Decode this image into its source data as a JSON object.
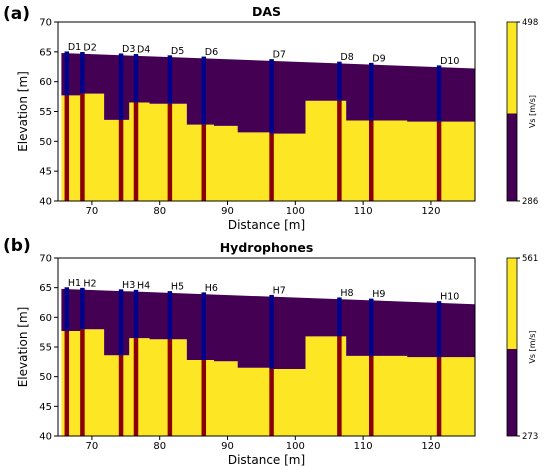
{
  "colors": {
    "high": "#fde725",
    "low": "#440154",
    "casing": "#8b0000",
    "sensor": "#00008b"
  },
  "chart_data": [
    {
      "type": "heatmap",
      "panel_label": "(a)",
      "title": "DAS",
      "xlabel": "Distance [m]",
      "ylabel": "Elevation [m]",
      "xlim": [
        65,
        126.5
      ],
      "ylim": [
        40,
        70
      ],
      "xticks": [
        "70",
        "80",
        "90",
        "100",
        "110",
        "120"
      ],
      "yticks": [
        "40",
        "45",
        "50",
        "55",
        "60",
        "65",
        "70"
      ],
      "colorbar": {
        "label": "Vs [m/s]",
        "max": "498",
        "min": "286"
      },
      "surface": [
        [
          65.5,
          64.8
        ],
        [
          126.5,
          62.2
        ]
      ],
      "interface": [
        [
          65.5,
          57.7
        ],
        [
          68.3,
          57.7
        ],
        [
          68.3,
          58.0
        ],
        [
          71.8,
          58.0
        ],
        [
          71.8,
          53.6
        ],
        [
          75.5,
          53.6
        ],
        [
          75.5,
          56.5
        ],
        [
          78.5,
          56.5
        ],
        [
          78.5,
          56.3
        ],
        [
          84.0,
          56.3
        ],
        [
          84.0,
          52.8
        ],
        [
          88.0,
          52.8
        ],
        [
          88.0,
          52.6
        ],
        [
          91.5,
          52.6
        ],
        [
          91.5,
          51.5
        ],
        [
          96.5,
          51.5
        ],
        [
          96.5,
          51.3
        ],
        [
          101.5,
          51.3
        ],
        [
          101.5,
          56.8
        ],
        [
          107.5,
          56.8
        ],
        [
          107.5,
          53.5
        ],
        [
          116.5,
          53.5
        ],
        [
          116.5,
          53.3
        ],
        [
          126.5,
          53.3
        ]
      ],
      "boreholes": [
        {
          "name": "D1",
          "x": 66.3
        },
        {
          "name": "D2",
          "x": 68.6
        },
        {
          "name": "D3",
          "x": 74.3
        },
        {
          "name": "D4",
          "x": 76.5
        },
        {
          "name": "D5",
          "x": 81.5
        },
        {
          "name": "D6",
          "x": 86.5
        },
        {
          "name": "D7",
          "x": 96.5
        },
        {
          "name": "D8",
          "x": 106.5
        },
        {
          "name": "D9",
          "x": 111.2
        },
        {
          "name": "D10",
          "x": 121.2
        }
      ]
    },
    {
      "type": "heatmap",
      "panel_label": "(b)",
      "title": "Hydrophones",
      "xlabel": "Distance [m]",
      "ylabel": "Elevation [m]",
      "xlim": [
        65,
        126.5
      ],
      "ylim": [
        40,
        70
      ],
      "xticks": [
        "70",
        "80",
        "90",
        "100",
        "110",
        "120"
      ],
      "yticks": [
        "40",
        "45",
        "50",
        "55",
        "60",
        "65",
        "70"
      ],
      "colorbar": {
        "label": "Vs [m/s]",
        "max": "561",
        "min": "273"
      },
      "surface": [
        [
          65.5,
          64.8
        ],
        [
          126.5,
          62.2
        ]
      ],
      "interface": [
        [
          65.5,
          57.7
        ],
        [
          68.3,
          57.7
        ],
        [
          68.3,
          58.0
        ],
        [
          71.8,
          58.0
        ],
        [
          71.8,
          53.6
        ],
        [
          75.5,
          53.6
        ],
        [
          75.5,
          56.5
        ],
        [
          78.5,
          56.5
        ],
        [
          78.5,
          56.3
        ],
        [
          84.0,
          56.3
        ],
        [
          84.0,
          52.8
        ],
        [
          88.0,
          52.8
        ],
        [
          88.0,
          52.6
        ],
        [
          91.5,
          52.6
        ],
        [
          91.5,
          51.5
        ],
        [
          96.5,
          51.5
        ],
        [
          96.5,
          51.3
        ],
        [
          101.5,
          51.3
        ],
        [
          101.5,
          56.8
        ],
        [
          107.5,
          56.8
        ],
        [
          107.5,
          53.5
        ],
        [
          116.5,
          53.5
        ],
        [
          116.5,
          53.3
        ],
        [
          126.5,
          53.3
        ]
      ],
      "boreholes": [
        {
          "name": "H1",
          "x": 66.3
        },
        {
          "name": "H2",
          "x": 68.6
        },
        {
          "name": "H3",
          "x": 74.3
        },
        {
          "name": "H4",
          "x": 76.5
        },
        {
          "name": "H5",
          "x": 81.5
        },
        {
          "name": "H6",
          "x": 86.5
        },
        {
          "name": "H7",
          "x": 96.5
        },
        {
          "name": "H8",
          "x": 106.5
        },
        {
          "name": "H9",
          "x": 111.2
        },
        {
          "name": "H10",
          "x": 121.2
        }
      ]
    }
  ]
}
